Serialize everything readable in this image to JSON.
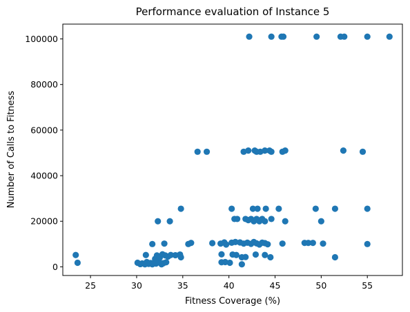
{
  "chart_data": {
    "type": "scatter",
    "title": "Performance evaluation of Instance 5",
    "xlabel": "Fitness Coverage (%)",
    "ylabel": "Number of Calls to Fitness",
    "xlim": [
      22,
      58.8
    ],
    "ylim": [
      -3800,
      106500
    ],
    "xticks": [
      25,
      30,
      35,
      40,
      45,
      50,
      55
    ],
    "yticks": [
      0,
      20000,
      40000,
      60000,
      80000,
      100000
    ],
    "grid": false,
    "marker_color": "#1f77b4",
    "series": [
      {
        "points": [
          [
            23.4,
            5200
          ],
          [
            23.6,
            1800
          ],
          [
            30.1,
            1800
          ],
          [
            30.4,
            1200
          ],
          [
            30.6,
            1500
          ],
          [
            30.9,
            1100
          ],
          [
            31.1,
            2100
          ],
          [
            31.3,
            1300
          ],
          [
            31.5,
            1700
          ],
          [
            31.7,
            1100
          ],
          [
            31.9,
            1900
          ],
          [
            32.1,
            1400
          ],
          [
            32.4,
            2300
          ],
          [
            32.7,
            1100
          ],
          [
            32.9,
            1600
          ],
          [
            33.2,
            2000
          ],
          [
            31.0,
            5200
          ],
          [
            31.7,
            10000
          ],
          [
            32.0,
            3500
          ],
          [
            32.2,
            5000
          ],
          [
            32.5,
            4000
          ],
          [
            32.8,
            5500
          ],
          [
            33.1,
            5000
          ],
          [
            33.4,
            4500
          ],
          [
            33.7,
            5200
          ],
          [
            34.2,
            5100
          ],
          [
            34.7,
            5400
          ],
          [
            34.8,
            4200
          ],
          [
            33.0,
            10200
          ],
          [
            35.6,
            10000
          ],
          [
            35.9,
            10500
          ],
          [
            32.3,
            20000
          ],
          [
            33.6,
            20000
          ],
          [
            34.8,
            25500
          ],
          [
            36.6,
            50500
          ],
          [
            37.6,
            50500
          ],
          [
            38.2,
            10400
          ],
          [
            39.1,
            10200
          ],
          [
            39.5,
            10700
          ],
          [
            39.7,
            9800
          ],
          [
            40.3,
            10600
          ],
          [
            40.7,
            10900
          ],
          [
            41.2,
            10700
          ],
          [
            41.6,
            10200
          ],
          [
            42.0,
            10600
          ],
          [
            42.4,
            10100
          ],
          [
            42.7,
            10900
          ],
          [
            43.0,
            10300
          ],
          [
            43.3,
            9800
          ],
          [
            43.6,
            10600
          ],
          [
            43.9,
            10400
          ],
          [
            44.2,
            9900
          ],
          [
            39.2,
            2000
          ],
          [
            39.6,
            2100
          ],
          [
            40.1,
            1800
          ],
          [
            40.4,
            5400
          ],
          [
            40.8,
            5200
          ],
          [
            39.2,
            5500
          ],
          [
            41.4,
            4200
          ],
          [
            41.8,
            4300
          ],
          [
            41.4,
            1100
          ],
          [
            42.9,
            5400
          ],
          [
            43.9,
            5200
          ],
          [
            44.5,
            4200
          ],
          [
            40.3,
            25500
          ],
          [
            40.6,
            21000
          ],
          [
            40.9,
            21000
          ],
          [
            41.8,
            21000
          ],
          [
            42.1,
            20500
          ],
          [
            42.4,
            21000
          ],
          [
            42.7,
            20000
          ],
          [
            43.0,
            21000
          ],
          [
            43.3,
            20000
          ],
          [
            43.6,
            21000
          ],
          [
            43.9,
            20000
          ],
          [
            42.6,
            25500
          ],
          [
            43.1,
            25500
          ],
          [
            44.0,
            25500
          ],
          [
            44.6,
            21000
          ],
          [
            45.4,
            25500
          ],
          [
            46.1,
            20000
          ],
          [
            49.4,
            25500
          ],
          [
            50.0,
            20000
          ],
          [
            51.5,
            25500
          ],
          [
            55.0,
            25500
          ],
          [
            41.6,
            50500
          ],
          [
            42.1,
            51000
          ],
          [
            42.8,
            51000
          ],
          [
            43.0,
            50500
          ],
          [
            43.4,
            50500
          ],
          [
            43.9,
            51000
          ],
          [
            44.4,
            51000
          ],
          [
            44.6,
            50500
          ],
          [
            45.8,
            50500
          ],
          [
            46.1,
            51000
          ],
          [
            52.4,
            51000
          ],
          [
            54.5,
            50500
          ],
          [
            45.8,
            10200
          ],
          [
            48.2,
            10500
          ],
          [
            48.6,
            10500
          ],
          [
            49.1,
            10500
          ],
          [
            50.2,
            10200
          ],
          [
            51.5,
            4200
          ],
          [
            55.0,
            10000
          ],
          [
            42.2,
            101000
          ],
          [
            44.6,
            101000
          ],
          [
            45.7,
            101000
          ],
          [
            45.9,
            101000
          ],
          [
            49.5,
            101000
          ],
          [
            52.1,
            101000
          ],
          [
            52.5,
            101000
          ],
          [
            55.0,
            101000
          ],
          [
            57.4,
            101000
          ]
        ]
      }
    ]
  }
}
